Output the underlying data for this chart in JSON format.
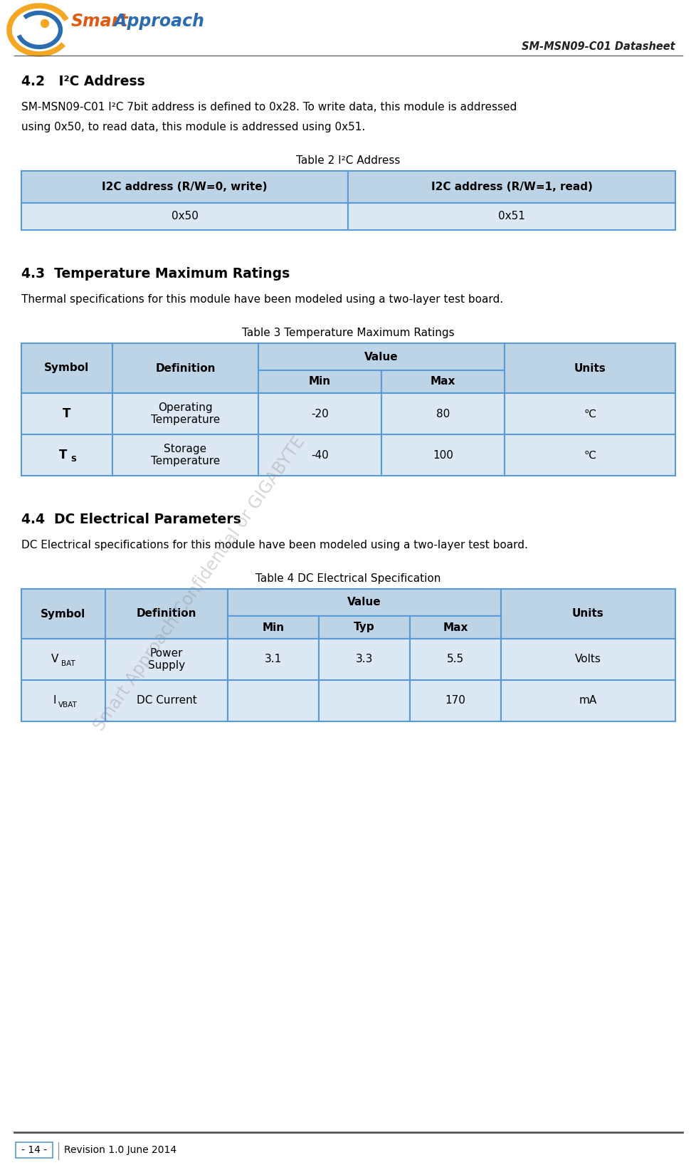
{
  "header_right": "SM-MSN09-C01 Datasheet",
  "footer_text": "Revision 1.0 June 2014",
  "footer_page": "- 14 -",
  "section_42_title": "4.2   I²C Address",
  "section_42_body1": "SM-MSN09-C01 I²C 7bit address is defined to 0x28. To write data, this module is addressed",
  "section_42_body2": "using 0x50, to read data, this module is addressed using 0x51.",
  "table2_title": "Table 2 I²C Address",
  "table2_headers": [
    "I2C address (R/W=0, write)",
    "I2C address (R/W=1, read)"
  ],
  "table2_data": [
    [
      "0x50",
      "0x51"
    ]
  ],
  "section_43_title": "4.3  Temperature Maximum Ratings",
  "section_43_body": "Thermal specifications for this module have been modeled using a two-layer test board.",
  "table3_title": "Table 3 Temperature Maximum Ratings",
  "section_44_title": "4.4  DC Electrical Parameters",
  "section_44_body": "DC Electrical specifications for this module have been modeled using a two-layer test board.",
  "table4_title": "Table 4 DC Electrical Specification",
  "header_bg": "#bdd4e7",
  "row_bg": "#dce9f5",
  "border_color": "#5b9bd5",
  "watermark_text": "Smart Approach Confidential or GIGABYTE",
  "bg_color": "#ffffff",
  "logo_orange": "#f5a623",
  "logo_blue": "#2b6cb0",
  "logo_red_dot": "#d45f00",
  "text_smart_color": "#e05a10",
  "text_approach_color": "#2b6cb0"
}
